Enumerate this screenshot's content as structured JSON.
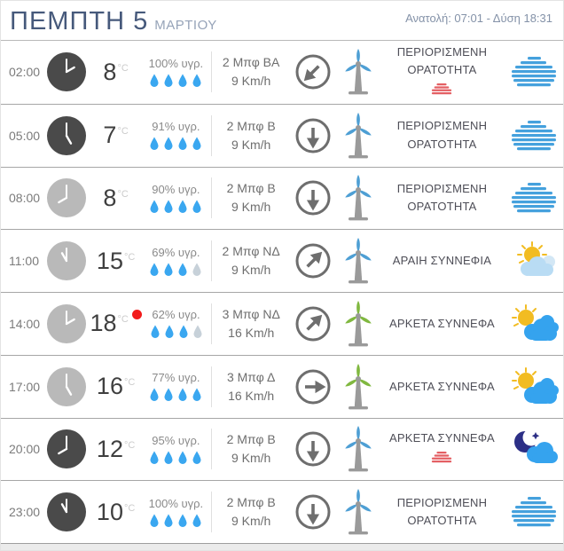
{
  "header": {
    "day": "ΠΕΜΠΤΗ",
    "date": "5",
    "month": "ΜΑΡΤΙΟΥ",
    "sun_info": "Ανατολή: 07:01 - Δύση 18:31"
  },
  "colors": {
    "accent_blue": "#46597b",
    "droplet_blue": "#3aa7f0",
    "turbine_blue": "#4e9fd4",
    "turbine_green": "#80b840",
    "dot_red": "#f21b1b",
    "fog_red": "#e45f63",
    "cloud_blue": "#45a1dd",
    "sun_yellow": "#f2bc22",
    "moon_navy": "#2c2f86"
  },
  "rows": [
    {
      "time": "02:00",
      "clock": "dark",
      "temp": "8",
      "temp_unit": "°C",
      "max_temp_dot": false,
      "humidity": "100% υγρ.",
      "drops_filled": 4,
      "wind": "2 Μπφ ΒΑ",
      "speed": "9 Km/h",
      "wind_dir": "ΒΑ",
      "turbine": "blue",
      "description": "ΠΕΡΙΟΡΙΣΜΕΝΗ ΟΡΑΤΟΤΗΤΑ",
      "fog_marker": true,
      "icon": "fog-cloud"
    },
    {
      "time": "05:00",
      "clock": "dark",
      "temp": "7",
      "temp_unit": "°C",
      "max_temp_dot": false,
      "humidity": "91% υγρ.",
      "drops_filled": 4,
      "wind": "2 Μπφ Β",
      "speed": "9 Km/h",
      "wind_dir": "Β",
      "turbine": "blue",
      "description": "ΠΕΡΙΟΡΙΣΜΕΝΗ ΟΡΑΤΟΤΗΤΑ",
      "fog_marker": false,
      "icon": "fog-cloud"
    },
    {
      "time": "08:00",
      "clock": "light",
      "temp": "8",
      "temp_unit": "°C",
      "max_temp_dot": false,
      "humidity": "90% υγρ.",
      "drops_filled": 4,
      "wind": "2 Μπφ Β",
      "speed": "9 Km/h",
      "wind_dir": "Β",
      "turbine": "blue",
      "description": "ΠΕΡΙΟΡΙΣΜΕΝΗ ΟΡΑΤΟΤΗΤΑ",
      "fog_marker": false,
      "icon": "fog-cloud"
    },
    {
      "time": "11:00",
      "clock": "light",
      "temp": "15",
      "temp_unit": "°C",
      "max_temp_dot": false,
      "humidity": "69% υγρ.",
      "drops_filled": 3,
      "wind": "2 Μπφ ΝΔ",
      "speed": "9 Km/h",
      "wind_dir": "ΝΔ",
      "turbine": "blue",
      "description": "ΑΡΑΙΗ ΣΥΝΝΕΦΙΑ",
      "fog_marker": false,
      "icon": "sun-cloud-light"
    },
    {
      "time": "14:00",
      "clock": "light",
      "temp": "18",
      "temp_unit": "°C",
      "max_temp_dot": true,
      "humidity": "62% υγρ.",
      "drops_filled": 3,
      "wind": "3 Μπφ ΝΔ",
      "speed": "16 Km/h",
      "wind_dir": "ΝΔ",
      "turbine": "green",
      "description": "ΑΡΚΕΤΑ ΣΥΝΝΕΦΑ",
      "fog_marker": false,
      "icon": "sun-cloud"
    },
    {
      "time": "17:00",
      "clock": "light",
      "temp": "16",
      "temp_unit": "°C",
      "max_temp_dot": false,
      "humidity": "77% υγρ.",
      "drops_filled": 4,
      "wind": "3 Μπφ Δ",
      "speed": "16 Km/h",
      "wind_dir": "Δ",
      "turbine": "green",
      "description": "ΑΡΚΕΤΑ ΣΥΝΝΕΦΑ",
      "fog_marker": false,
      "icon": "sun-cloud"
    },
    {
      "time": "20:00",
      "clock": "dark",
      "temp": "12",
      "temp_unit": "°C",
      "max_temp_dot": false,
      "humidity": "95% υγρ.",
      "drops_filled": 4,
      "wind": "2 Μπφ Β",
      "speed": "9 Km/h",
      "wind_dir": "Β",
      "turbine": "blue",
      "description": "ΑΡΚΕΤΑ ΣΥΝΝΕΦΑ",
      "fog_marker": true,
      "icon": "moon-cloud"
    },
    {
      "time": "23:00",
      "clock": "dark",
      "temp": "10",
      "temp_unit": "°C",
      "max_temp_dot": false,
      "humidity": "100% υγρ.",
      "drops_filled": 4,
      "wind": "2 Μπφ Β",
      "speed": "9 Km/h",
      "wind_dir": "Β",
      "turbine": "blue",
      "description": "ΠΕΡΙΟΡΙΣΜΕΝΗ ΟΡΑΤΟΤΗΤΑ",
      "fog_marker": false,
      "icon": "fog-cloud"
    }
  ]
}
